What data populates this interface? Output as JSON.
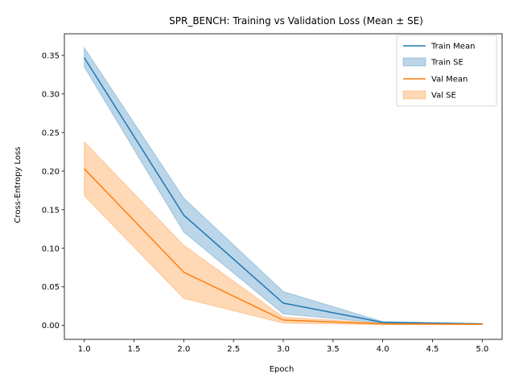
{
  "chart_data": {
    "type": "line",
    "title": "SPR_BENCH: Training vs Validation Loss (Mean ± SE)",
    "xlabel": "Epoch",
    "ylabel": "Cross-Entropy Loss",
    "x": [
      1.0,
      2.0,
      3.0,
      4.0,
      5.0
    ],
    "xlim": [
      0.8,
      5.2
    ],
    "ylim": [
      -0.018,
      0.378
    ],
    "xticks": [
      "1.0",
      "1.5",
      "2.0",
      "2.5",
      "3.0",
      "3.5",
      "4.0",
      "4.5",
      "5.0"
    ],
    "yticks": [
      "0.00",
      "0.05",
      "0.10",
      "0.15",
      "0.20",
      "0.25",
      "0.30",
      "0.35"
    ],
    "grid": false,
    "legend_position": "top-right",
    "series": [
      {
        "name": "Train Mean",
        "band_name": "Train SE",
        "color": "#1f77b4",
        "values": [
          0.347,
          0.143,
          0.029,
          0.004,
          0.002
        ],
        "lower": [
          0.335,
          0.121,
          0.015,
          0.003,
          0.0015
        ],
        "upper": [
          0.36,
          0.165,
          0.044,
          0.005,
          0.0025
        ]
      },
      {
        "name": "Val Mean",
        "band_name": "Val SE",
        "color": "#ff7f0e",
        "values": [
          0.203,
          0.069,
          0.007,
          0.002,
          0.0015
        ],
        "lower": [
          0.168,
          0.035,
          0.003,
          0.001,
          0.001
        ],
        "upper": [
          0.238,
          0.104,
          0.011,
          0.003,
          0.002
        ]
      }
    ]
  }
}
